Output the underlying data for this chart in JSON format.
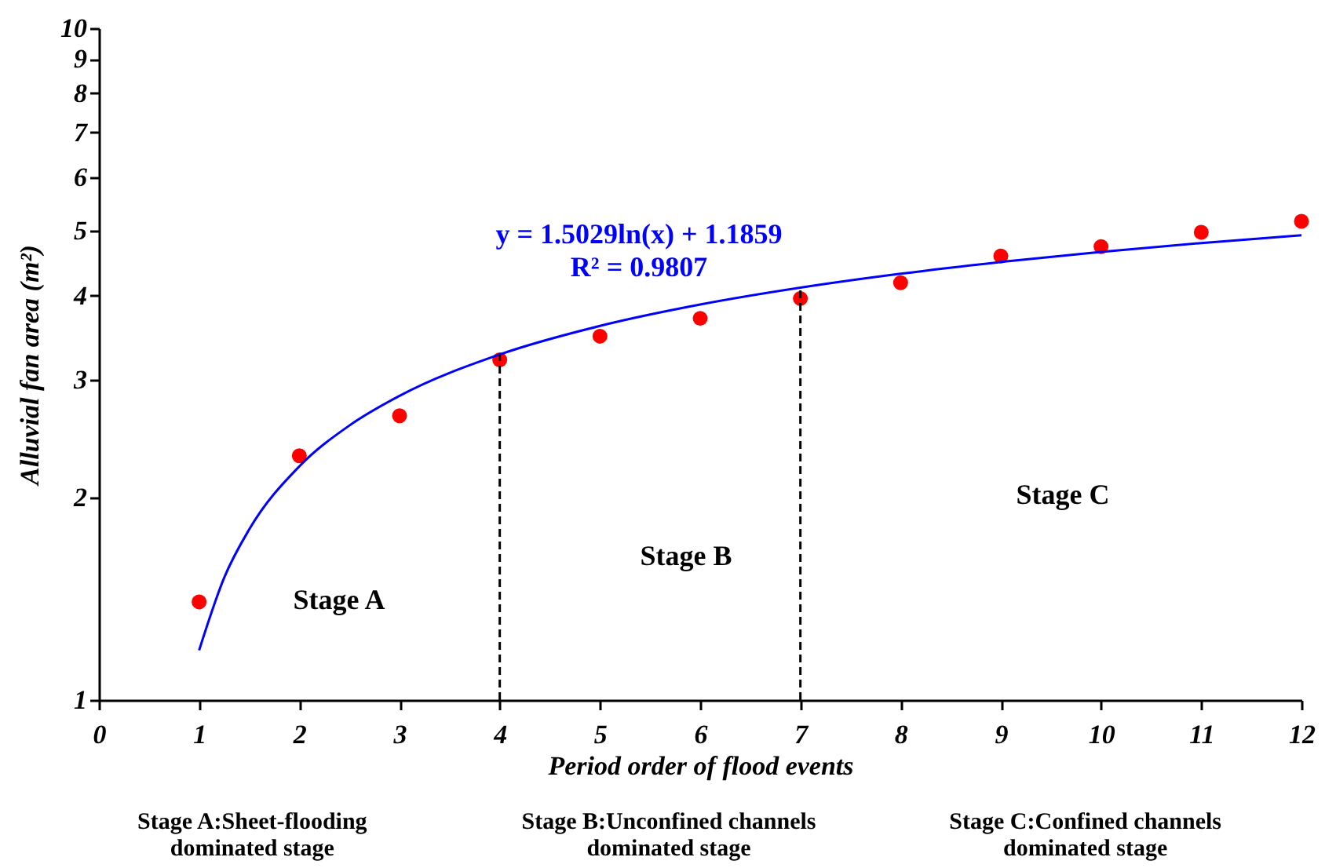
{
  "chart_data": {
    "type": "scatter",
    "xlabel": "Period order of flood events",
    "ylabel": "Alluvial fan area (m²)",
    "xlim": [
      0,
      12
    ],
    "xticks": [
      0,
      1,
      2,
      3,
      4,
      5,
      6,
      7,
      8,
      9,
      10,
      11,
      12
    ],
    "ylim": [
      1,
      10
    ],
    "yticks": [
      1,
      2,
      3,
      4,
      5,
      6,
      7,
      8,
      9,
      10
    ],
    "log": true,
    "grid": false,
    "series": [
      {
        "color": "#ff0000",
        "marker": "circle",
        "x": [
          1,
          2,
          3,
          4,
          5,
          6,
          7,
          8,
          9,
          10,
          11,
          12
        ],
        "values": [
          1.4,
          2.31,
          2.65,
          3.21,
          3.48,
          3.7,
          3.96,
          4.18,
          4.58,
          4.73,
          4.97,
          5.16
        ]
      },
      {
        "type": "line",
        "color": "#0000ff",
        "line_style": "solid",
        "marker": "none",
        "x": [
          1,
          1.25,
          1.5,
          2,
          2.5,
          3,
          4,
          5,
          6,
          7,
          8,
          9,
          10,
          11,
          12
        ],
        "values": [
          1.186,
          1.521,
          1.795,
          2.228,
          2.563,
          2.837,
          3.269,
          3.605,
          3.879,
          4.11,
          4.311,
          4.488,
          4.646,
          4.79,
          4.92
        ]
      }
    ],
    "ref_lines": [
      {
        "axis": "x",
        "value": 4,
        "color": "#000000",
        "line_style": "dashed"
      },
      {
        "axis": "x",
        "value": 7,
        "color": "#000000",
        "line_style": "dashed"
      }
    ],
    "annotations": [
      "y = 1.5029ln(x) + 1.1859",
      "R² = 0.9807",
      "Stage A",
      "Stage B",
      "Stage C",
      "Stage A:Sheet-flooding\ndominated stage",
      "Stage B:Unconfined channels\ndominated stage",
      "Stage C:Confined channels\ndominated stage"
    ]
  }
}
